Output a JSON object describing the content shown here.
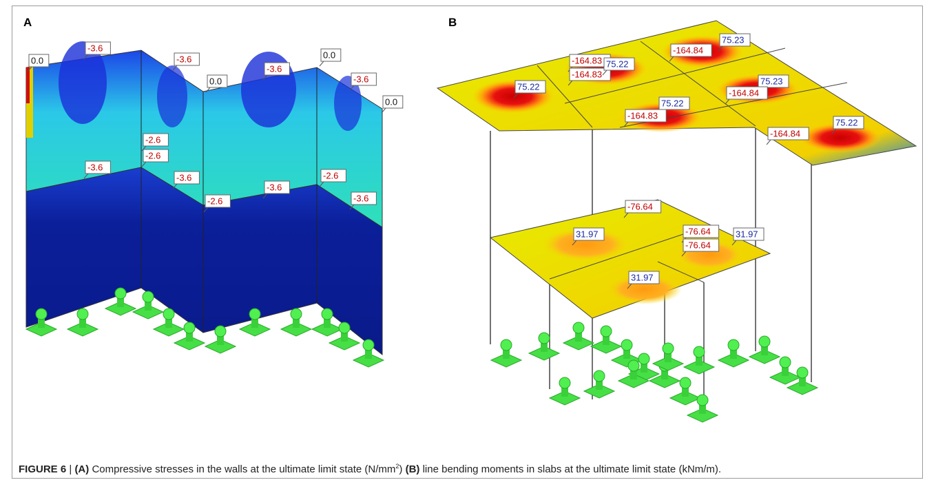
{
  "panel_a": {
    "label": "A",
    "labels": [
      "0.0",
      "-3.6",
      "-3.6",
      "0.0",
      "-3.6",
      "0.0",
      "-3.6",
      "0.0",
      "-2.6",
      "-2.6",
      "-3.6",
      "-3.6",
      "-2.6",
      "-3.6",
      "-2.6",
      "-3.6"
    ]
  },
  "panel_b": {
    "label": "B",
    "labels": [
      "75.23",
      "-164.84",
      "-164.83",
      "-164.83",
      "75.22",
      "75.22",
      "75.23",
      "-164.84",
      "75.22",
      "-164.83",
      "75.22",
      "-164.84",
      "-76.64",
      "31.97",
      "-76.64",
      "-76.64",
      "31.97",
      "31.97"
    ]
  },
  "caption": {
    "figure": "FIGURE 6",
    "separator": "|",
    "a_tag": "(A)",
    "a_text": "Compressive stresses in the walls at the ultimate limit state (N/mm",
    "a_sup": "2",
    "a_close": ")",
    "b_tag": "(B)",
    "b_text": "line bending moments in slabs at the ultimate limit state (kNm/m)."
  }
}
